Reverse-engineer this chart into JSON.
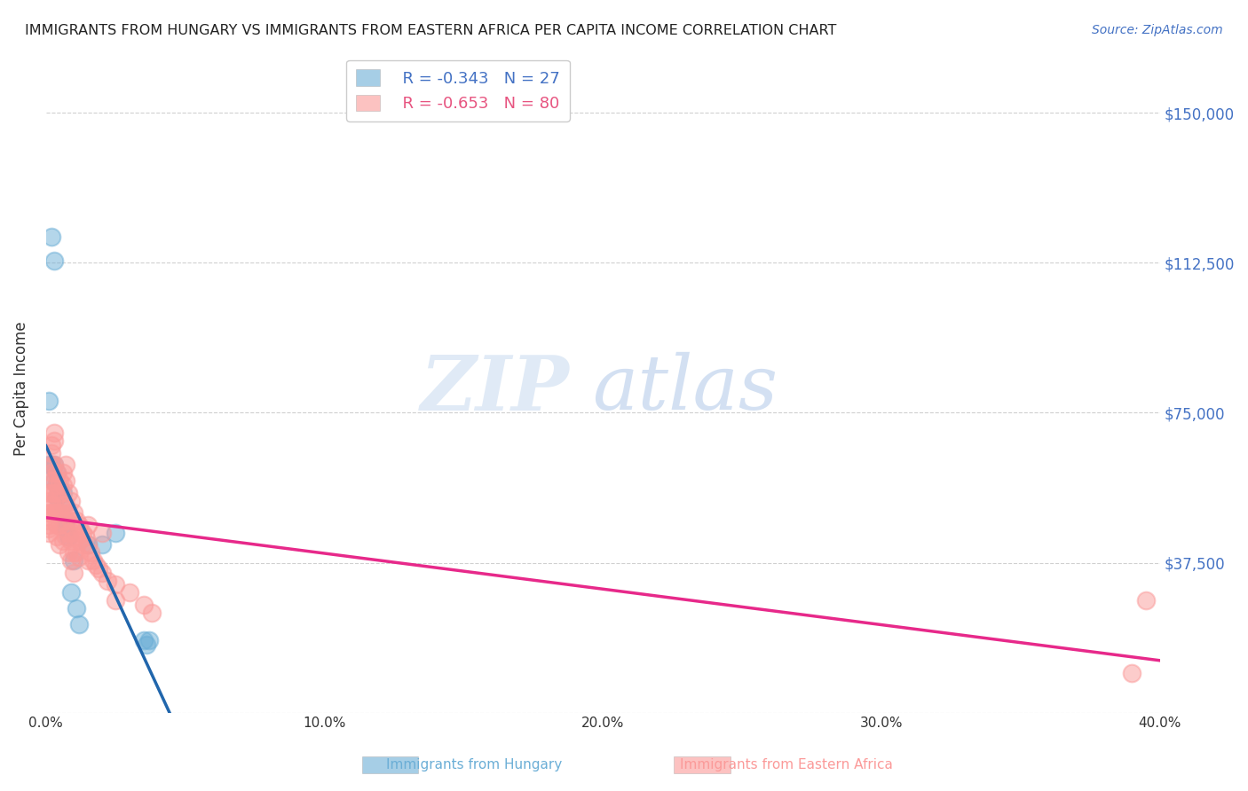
{
  "title": "IMMIGRANTS FROM HUNGARY VS IMMIGRANTS FROM EASTERN AFRICA PER CAPITA INCOME CORRELATION CHART",
  "source": "Source: ZipAtlas.com",
  "ylabel": "Per Capita Income",
  "yticks": [
    0,
    37500,
    75000,
    112500,
    150000
  ],
  "ytick_labels": [
    "",
    "$37,500",
    "$75,000",
    "$112,500",
    "$150,000"
  ],
  "xlim": [
    0.0,
    0.4
  ],
  "ylim": [
    0,
    162000
  ],
  "legend_hungary": "R = -0.343   N = 27",
  "legend_eastern_africa": "R = -0.653   N = 80",
  "hungary_color": "#6baed6",
  "eastern_africa_color": "#fb9a99",
  "hungary_line_color": "#2166ac",
  "eastern_africa_line_color": "#e7298a",
  "watermark_zip": "ZIP",
  "watermark_atlas": "atlas",
  "hungary_scatter": [
    [
      0.001,
      62000
    ],
    [
      0.003,
      113000
    ],
    [
      0.002,
      119000
    ],
    [
      0.001,
      78000
    ],
    [
      0.002,
      62000
    ],
    [
      0.003,
      62000
    ],
    [
      0.003,
      58000
    ],
    [
      0.004,
      57000
    ],
    [
      0.004,
      54000
    ],
    [
      0.005,
      56000
    ],
    [
      0.004,
      60000
    ],
    [
      0.005,
      55000
    ],
    [
      0.006,
      55000
    ],
    [
      0.006,
      52000
    ],
    [
      0.007,
      48000
    ],
    [
      0.007,
      46000
    ],
    [
      0.008,
      44000
    ],
    [
      0.009,
      30000
    ],
    [
      0.01,
      38000
    ],
    [
      0.011,
      26000
    ],
    [
      0.012,
      22000
    ],
    [
      0.015,
      42000
    ],
    [
      0.02,
      42000
    ],
    [
      0.025,
      45000
    ],
    [
      0.035,
      18000
    ],
    [
      0.036,
      17000
    ],
    [
      0.037,
      18000
    ]
  ],
  "eastern_africa_scatter": [
    [
      0.001,
      55000
    ],
    [
      0.001,
      53000
    ],
    [
      0.001,
      50000
    ],
    [
      0.001,
      48000
    ],
    [
      0.001,
      47000
    ],
    [
      0.001,
      46000
    ],
    [
      0.001,
      45000
    ],
    [
      0.002,
      67000
    ],
    [
      0.002,
      65000
    ],
    [
      0.002,
      62000
    ],
    [
      0.002,
      60000
    ],
    [
      0.002,
      58000
    ],
    [
      0.002,
      55000
    ],
    [
      0.002,
      52000
    ],
    [
      0.002,
      50000
    ],
    [
      0.003,
      70000
    ],
    [
      0.003,
      68000
    ],
    [
      0.003,
      62000
    ],
    [
      0.003,
      58000
    ],
    [
      0.003,
      55000
    ],
    [
      0.003,
      50000
    ],
    [
      0.004,
      60000
    ],
    [
      0.004,
      57000
    ],
    [
      0.004,
      54000
    ],
    [
      0.004,
      50000
    ],
    [
      0.004,
      47000
    ],
    [
      0.004,
      44000
    ],
    [
      0.005,
      58000
    ],
    [
      0.005,
      55000
    ],
    [
      0.005,
      50000
    ],
    [
      0.005,
      47000
    ],
    [
      0.005,
      42000
    ],
    [
      0.006,
      60000
    ],
    [
      0.006,
      57000
    ],
    [
      0.006,
      52000
    ],
    [
      0.006,
      48000
    ],
    [
      0.006,
      43000
    ],
    [
      0.007,
      62000
    ],
    [
      0.007,
      58000
    ],
    [
      0.007,
      52000
    ],
    [
      0.007,
      48000
    ],
    [
      0.007,
      44000
    ],
    [
      0.008,
      55000
    ],
    [
      0.008,
      50000
    ],
    [
      0.008,
      45000
    ],
    [
      0.008,
      40000
    ],
    [
      0.009,
      53000
    ],
    [
      0.009,
      48000
    ],
    [
      0.009,
      43000
    ],
    [
      0.009,
      38000
    ],
    [
      0.01,
      50000
    ],
    [
      0.01,
      45000
    ],
    [
      0.01,
      40000
    ],
    [
      0.01,
      35000
    ],
    [
      0.011,
      48000
    ],
    [
      0.011,
      44000
    ],
    [
      0.011,
      40000
    ],
    [
      0.012,
      47000
    ],
    [
      0.012,
      43000
    ],
    [
      0.012,
      39000
    ],
    [
      0.013,
      45000
    ],
    [
      0.013,
      42000
    ],
    [
      0.014,
      44000
    ],
    [
      0.015,
      47000
    ],
    [
      0.015,
      42000
    ],
    [
      0.015,
      38000
    ],
    [
      0.016,
      40000
    ],
    [
      0.017,
      38000
    ],
    [
      0.018,
      37000
    ],
    [
      0.019,
      36000
    ],
    [
      0.02,
      45000
    ],
    [
      0.02,
      35000
    ],
    [
      0.022,
      33000
    ],
    [
      0.025,
      32000
    ],
    [
      0.025,
      28000
    ],
    [
      0.03,
      30000
    ],
    [
      0.035,
      27000
    ],
    [
      0.038,
      25000
    ],
    [
      0.39,
      10000
    ],
    [
      0.395,
      28000
    ]
  ]
}
